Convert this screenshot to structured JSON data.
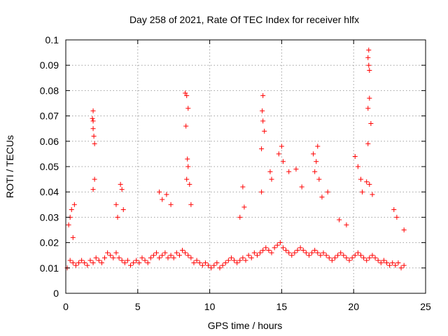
{
  "chart_data": {
    "type": "scatter",
    "title": "Day 258 of 2021, Rate Of TEC Index for receiver hlfx",
    "xlabel": "GPS time / hours",
    "ylabel": "ROTI / TECUs",
    "xlim": [
      0,
      25
    ],
    "ylim": [
      0,
      0.1
    ],
    "xticks": [
      0,
      5,
      10,
      15,
      20,
      25
    ],
    "xtick_labels": [
      "0",
      "5",
      "10",
      "15",
      "20",
      "25"
    ],
    "yticks": [
      0,
      0.01,
      0.02,
      0.03,
      0.04,
      0.05,
      0.06,
      0.07,
      0.08,
      0.09,
      0.1
    ],
    "ytick_labels": [
      "0",
      "0.01",
      "0.02",
      "0.03",
      "0.04",
      "0.05",
      "0.06",
      "0.07",
      "0.08",
      "0.09",
      "0.1"
    ],
    "grid": true,
    "marker": "+",
    "color": "#ff0000",
    "series": [
      {
        "name": "ROTI",
        "x": [
          0.1,
          0.3,
          0.5,
          0.7,
          0.9,
          1.1,
          1.3,
          1.5,
          1.7,
          1.9,
          2.1,
          2.3,
          2.5,
          2.7,
          2.9,
          3.1,
          3.3,
          3.5,
          3.7,
          3.9,
          4.1,
          4.3,
          4.5,
          4.7,
          4.9,
          5.1,
          5.3,
          5.5,
          5.7,
          5.9,
          6.1,
          6.3,
          6.5,
          6.7,
          6.9,
          7.1,
          7.3,
          7.5,
          7.7,
          7.9,
          8.1,
          8.3,
          8.5,
          8.7,
          8.9,
          9.1,
          9.3,
          9.5,
          9.7,
          9.9,
          10.1,
          10.3,
          10.5,
          10.7,
          10.9,
          11.1,
          11.3,
          11.5,
          11.7,
          11.9,
          12.1,
          12.3,
          12.5,
          12.7,
          12.9,
          13.1,
          13.3,
          13.5,
          13.7,
          13.9,
          14.1,
          14.3,
          14.5,
          14.7,
          14.9,
          15.1,
          15.3,
          15.5,
          15.7,
          15.9,
          16.1,
          16.3,
          16.5,
          16.7,
          16.9,
          17.1,
          17.3,
          17.5,
          17.7,
          17.9,
          18.1,
          18.3,
          18.5,
          18.7,
          18.9,
          19.1,
          19.3,
          19.5,
          19.7,
          19.9,
          20.1,
          20.3,
          20.5,
          20.7,
          20.9,
          21.1,
          21.3,
          21.5,
          21.7,
          21.9,
          22.1,
          22.3,
          22.5,
          22.7,
          22.9,
          23.1,
          23.3,
          23.5,
          0.2,
          0.4,
          0.6,
          0.3,
          0.5,
          1.9,
          1.9,
          1.95,
          2.0,
          1.9,
          2.0,
          1.85,
          1.9,
          3.8,
          3.9,
          4.0,
          3.5,
          3.6,
          6.5,
          6.7,
          7.0,
          7.3,
          8.3,
          8.4,
          8.5,
          8.35,
          8.45,
          8.5,
          8.4,
          8.6,
          8.7,
          12.3,
          12.1,
          12.4,
          13.6,
          13.7,
          13.65,
          13.7,
          13.6,
          13.8,
          14.2,
          14.3,
          14.8,
          15.0,
          15.1,
          15.5,
          16.0,
          16.4,
          17.2,
          17.4,
          17.5,
          17.3,
          17.6,
          17.8,
          18.2,
          19.0,
          19.5,
          20.1,
          20.3,
          20.5,
          20.6,
          20.9,
          21.0,
          21.05,
          21.1,
          21.05,
          21.0,
          21.1,
          21.2,
          21.0,
          21.1,
          21.3,
          22.8,
          23.0,
          23.5
        ],
        "y": [
          0.01,
          0.013,
          0.012,
          0.011,
          0.012,
          0.013,
          0.012,
          0.011,
          0.013,
          0.012,
          0.014,
          0.013,
          0.012,
          0.014,
          0.016,
          0.015,
          0.014,
          0.016,
          0.014,
          0.013,
          0.012,
          0.013,
          0.011,
          0.012,
          0.013,
          0.012,
          0.014,
          0.013,
          0.012,
          0.014,
          0.015,
          0.016,
          0.014,
          0.015,
          0.016,
          0.014,
          0.015,
          0.014,
          0.016,
          0.015,
          0.017,
          0.016,
          0.015,
          0.014,
          0.012,
          0.013,
          0.012,
          0.011,
          0.012,
          0.011,
          0.01,
          0.011,
          0.012,
          0.01,
          0.011,
          0.012,
          0.013,
          0.014,
          0.013,
          0.012,
          0.013,
          0.014,
          0.013,
          0.015,
          0.014,
          0.016,
          0.015,
          0.016,
          0.017,
          0.018,
          0.017,
          0.016,
          0.018,
          0.019,
          0.02,
          0.018,
          0.017,
          0.016,
          0.015,
          0.016,
          0.017,
          0.018,
          0.017,
          0.016,
          0.015,
          0.016,
          0.017,
          0.016,
          0.015,
          0.016,
          0.015,
          0.014,
          0.013,
          0.014,
          0.015,
          0.016,
          0.015,
          0.014,
          0.013,
          0.014,
          0.015,
          0.016,
          0.015,
          0.014,
          0.013,
          0.014,
          0.015,
          0.014,
          0.013,
          0.012,
          0.013,
          0.012,
          0.011,
          0.012,
          0.011,
          0.012,
          0.01,
          0.011,
          0.027,
          0.033,
          0.035,
          0.03,
          0.022,
          0.072,
          0.068,
          0.062,
          0.059,
          0.041,
          0.045,
          0.069,
          0.065,
          0.043,
          0.041,
          0.033,
          0.035,
          0.03,
          0.04,
          0.037,
          0.039,
          0.035,
          0.079,
          0.078,
          0.073,
          0.066,
          0.053,
          0.05,
          0.045,
          0.043,
          0.035,
          0.042,
          0.03,
          0.034,
          0.04,
          0.078,
          0.072,
          0.068,
          0.057,
          0.064,
          0.048,
          0.045,
          0.055,
          0.058,
          0.052,
          0.048,
          0.049,
          0.042,
          0.055,
          0.052,
          0.058,
          0.048,
          0.045,
          0.038,
          0.04,
          0.029,
          0.027,
          0.054,
          0.05,
          0.045,
          0.04,
          0.044,
          0.093,
          0.096,
          0.088,
          0.09,
          0.073,
          0.077,
          0.067,
          0.059,
          0.043,
          0.039,
          0.033,
          0.03,
          0.025
        ]
      }
    ]
  }
}
